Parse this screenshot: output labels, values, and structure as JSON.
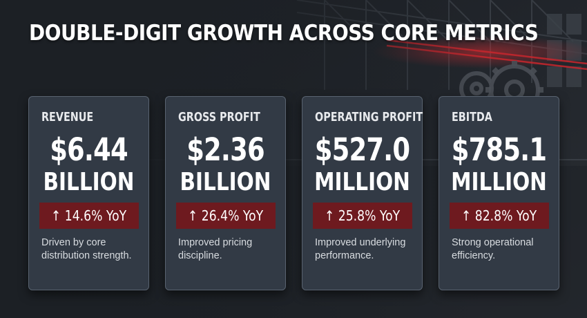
{
  "headline": "DOUBLE-DIGIT GROWTH ACROSS CORE METRICS",
  "metrics": [
    {
      "label": "REVENUE",
      "value": "$6.44",
      "unit": "BILLION",
      "change": "↑ 14.6% YoY",
      "description": "Driven by core distribution strength."
    },
    {
      "label": "GROSS PROFIT",
      "value": "$2.36",
      "unit": "BILLION",
      "change": "↑ 26.4% YoY",
      "description": "Improved pricing discipline."
    },
    {
      "label": "OPERATING PROFIT",
      "value": "$527.0",
      "unit": "MILLION",
      "change": "↑ 25.8% YoY",
      "description": "Improved underlying performance."
    },
    {
      "label": "EBITDA",
      "value": "$785.1",
      "unit": "MILLION",
      "change": "↑ 82.8% YoY",
      "description": "Strong operational efficiency."
    }
  ],
  "colors": {
    "background": "#1c2025",
    "card": "#323a45",
    "card_border": "#596370",
    "badge": "#6e1a1f",
    "accent_glow": "#c0262d"
  }
}
